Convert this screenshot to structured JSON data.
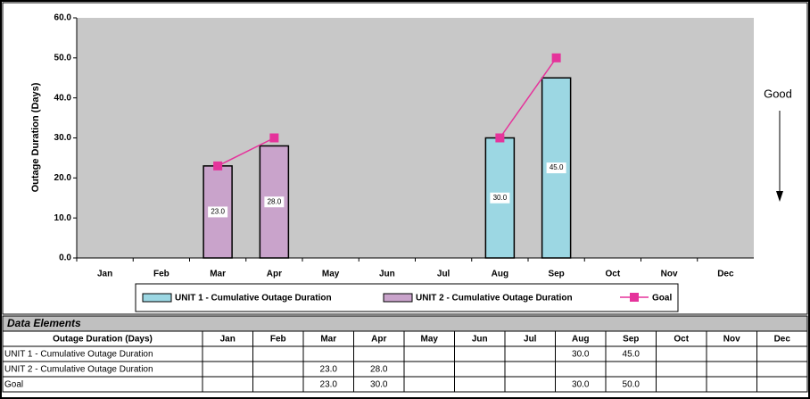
{
  "chart_data": {
    "type": "bar",
    "ylabel": "Outage Duration (Days)",
    "categories": [
      "Jan",
      "Feb",
      "Mar",
      "Apr",
      "May",
      "Jun",
      "Jul",
      "Aug",
      "Sep",
      "Oct",
      "Nov",
      "Dec"
    ],
    "series": [
      {
        "name": "UNIT 1 - Cumulative Outage Duration",
        "type": "bar",
        "color": "#9cd7e3",
        "values": [
          null,
          null,
          null,
          null,
          null,
          null,
          null,
          30,
          45,
          null,
          null,
          null
        ],
        "value_labels": [
          null,
          null,
          null,
          null,
          null,
          null,
          null,
          "30.0",
          "45.0",
          null,
          null,
          null
        ]
      },
      {
        "name": "UNIT 2 - Cumulative Outage Duration",
        "type": "bar",
        "color": "#c9a3cb",
        "values": [
          null,
          null,
          23,
          28,
          null,
          null,
          null,
          null,
          null,
          null,
          null,
          null
        ],
        "value_labels": [
          null,
          null,
          "23.0",
          "28.0",
          null,
          null,
          null,
          null,
          null,
          null,
          null,
          null
        ]
      },
      {
        "name": "Goal",
        "type": "line",
        "color": "#e5339b",
        "values": [
          null,
          null,
          23,
          30,
          null,
          null,
          null,
          30,
          50,
          null,
          null,
          null
        ]
      }
    ],
    "ylim": [
      0,
      60
    ],
    "yticks": [
      {
        "value": 0,
        "label": "0.0"
      },
      {
        "value": 10,
        "label": "10.0"
      },
      {
        "value": 20,
        "label": "20.0"
      },
      {
        "value": 30,
        "label": "30.0"
      },
      {
        "value": 40,
        "label": "40.0"
      },
      {
        "value": 50,
        "label": "50.0"
      },
      {
        "value": 60,
        "label": "60.0"
      }
    ],
    "annotation": "Good"
  },
  "table": {
    "title": "Data Elements",
    "header": [
      "Outage Duration (Days)",
      "Jan",
      "Feb",
      "Mar",
      "Apr",
      "May",
      "Jun",
      "Jul",
      "Aug",
      "Sep",
      "Oct",
      "Nov",
      "Dec"
    ],
    "rows": [
      [
        "UNIT 1 - Cumulative Outage Duration",
        null,
        null,
        null,
        null,
        null,
        null,
        null,
        "30.0",
        "45.0",
        null,
        null,
        null
      ],
      [
        "UNIT 2 - Cumulative Outage Duration",
        null,
        null,
        "23.0",
        "28.0",
        null,
        null,
        null,
        null,
        null,
        null,
        null,
        null
      ],
      [
        "Goal",
        null,
        null,
        "23.0",
        "30.0",
        null,
        null,
        null,
        "30.0",
        "50.0",
        null,
        null,
        null
      ]
    ]
  }
}
